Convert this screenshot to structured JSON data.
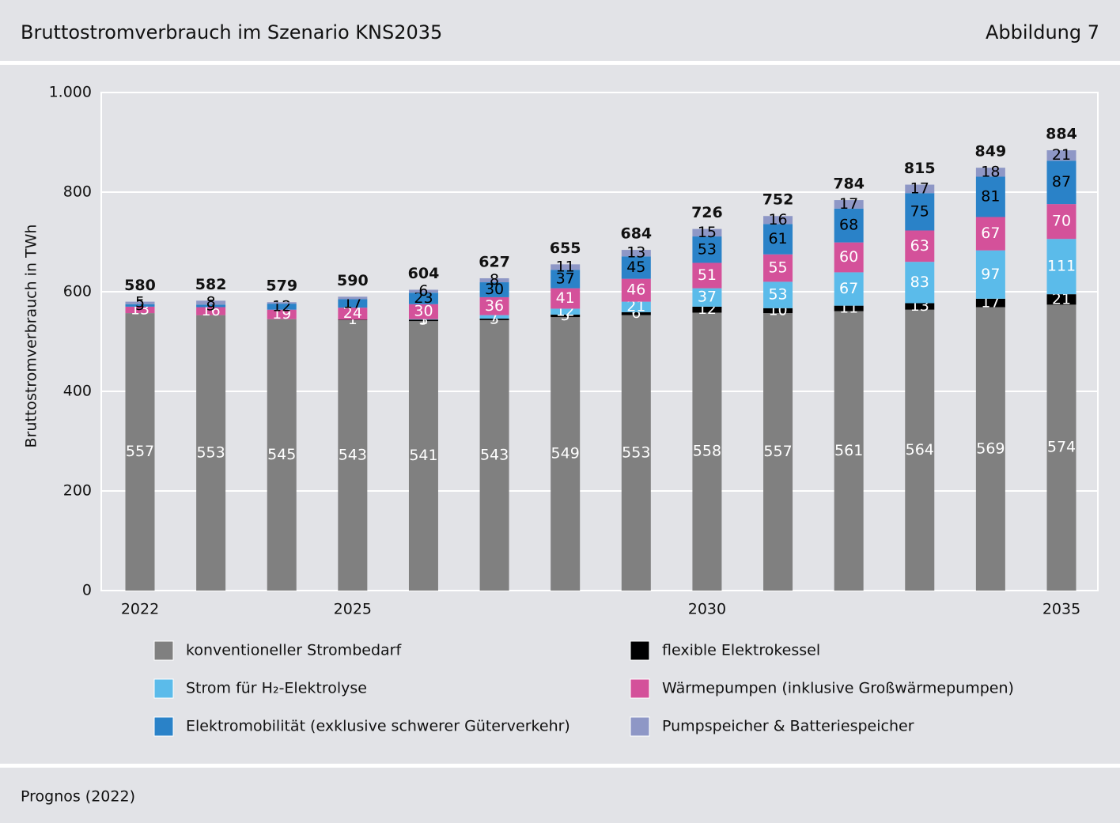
{
  "header": {
    "title": "Bruttostromverbrauch im Szenario KNS2035",
    "figure": "Abbildung 7"
  },
  "footer": {
    "source": "Prognos (2022)"
  },
  "chart_data": {
    "type": "stacked_bar",
    "y_label": "Bruttostromverbrauch in TWh",
    "categories": [
      "2022",
      null,
      null,
      "2025",
      null,
      null,
      null,
      null,
      "2030",
      null,
      null,
      null,
      null,
      "2035"
    ],
    "ylim": [
      0,
      1000
    ],
    "yticks": [
      0,
      200,
      400,
      600,
      800,
      {
        "value": 1000,
        "label": "1.000"
      }
    ],
    "grid": true,
    "totals": [
      580,
      582,
      579,
      590,
      604,
      627,
      655,
      684,
      726,
      752,
      784,
      815,
      849,
      884
    ],
    "series": [
      {
        "name": "konventioneller Strombedarf",
        "color": "#808080",
        "label_color": "#ffffff",
        "values": [
          557,
          553,
          545,
          543,
          541,
          543,
          549,
          553,
          558,
          557,
          561,
          564,
          569,
          574
        ],
        "value_labels": [
          "557",
          "553",
          "545",
          "543",
          "541",
          "543",
          "549",
          "553",
          "558",
          "557",
          "561",
          "564",
          "569",
          "574"
        ]
      },
      {
        "name": "flexible Elektrokessel",
        "color": "#000000",
        "label_color": "#ffffff",
        "values": [
          0,
          0,
          0,
          1,
          3,
          3,
          5,
          6,
          12,
          10,
          11,
          13,
          17,
          21
        ],
        "value_labels": [
          null,
          null,
          null,
          "1",
          "3",
          "3",
          "5",
          "6",
          "12",
          "10",
          "11",
          "13",
          "17",
          "21"
        ]
      },
      {
        "name": "Strom für H₂-Elektrolyse",
        "color": "#5bbbea",
        "label_color": "#ffffff",
        "values": [
          0,
          0,
          0,
          0,
          1,
          7,
          12,
          21,
          37,
          53,
          67,
          83,
          97,
          111
        ],
        "value_labels": [
          null,
          null,
          null,
          null,
          "1",
          "7",
          "12",
          "21",
          "37",
          "53",
          "67",
          "83",
          "97",
          "111"
        ]
      },
      {
        "name": "Wärmepumpen (inklusive Großwärmepumpen)",
        "color": "#d4519a",
        "label_color": "#ffffff",
        "values": [
          13,
          16,
          19,
          24,
          30,
          36,
          41,
          46,
          51,
          55,
          60,
          63,
          67,
          70
        ],
        "value_labels": [
          "13",
          "16",
          "19",
          "24",
          "30",
          "36",
          "41",
          "46",
          "51",
          "55",
          "60",
          "63",
          "67",
          "70"
        ]
      },
      {
        "name": "Elektromobilität (exklusive schwerer Güterverkehr)",
        "color": "#2a82c8",
        "label_color": "#000000",
        "values": [
          5,
          5,
          12,
          17,
          23,
          30,
          37,
          45,
          53,
          61,
          68,
          75,
          81,
          87
        ],
        "value_labels": [
          "5",
          "5",
          "12",
          "17",
          "23",
          "30",
          "37",
          "45",
          "53",
          "61",
          "68",
          "75",
          "81",
          "87"
        ]
      },
      {
        "name": "Pumpspeicher & Batteriespeicher",
        "color": "#8e97c6",
        "label_color": "#000000",
        "values": [
          5,
          8,
          3,
          5,
          6,
          8,
          11,
          13,
          15,
          16,
          17,
          17,
          18,
          21
        ],
        "value_labels": [
          "5",
          "8",
          null,
          null,
          "6",
          "8",
          "11",
          "13",
          "15",
          "16",
          "17",
          "17",
          "18",
          "21"
        ]
      }
    ]
  }
}
